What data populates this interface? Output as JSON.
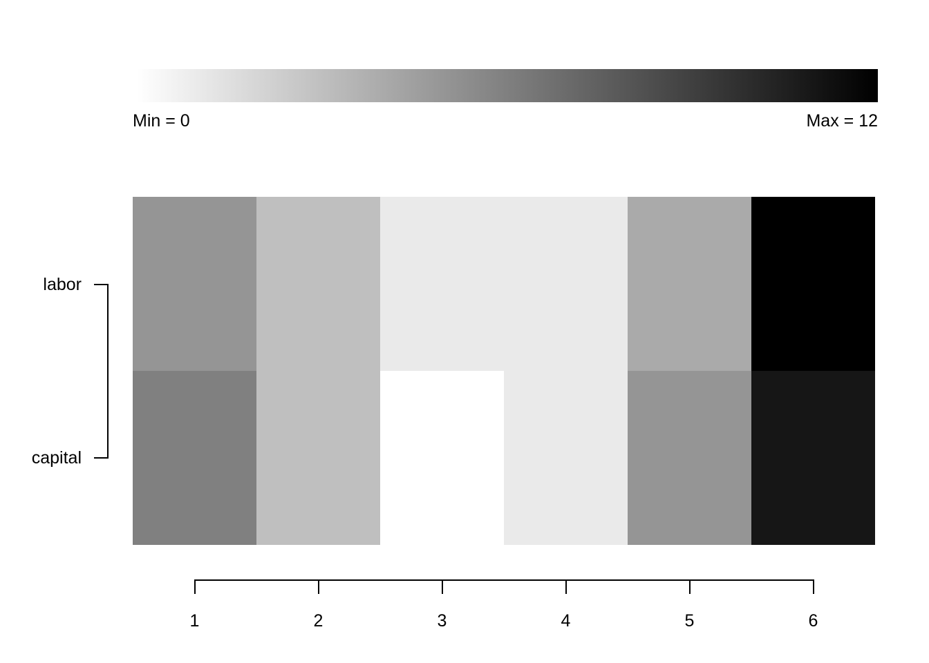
{
  "figure": {
    "background_color": "#ffffff",
    "text_color": "#000000"
  },
  "legend": {
    "min_label": "Min = 0",
    "max_label": "Max = 12",
    "gradient_start_color": "#ffffff",
    "gradient_end_color": "#000000"
  },
  "chart_data": {
    "type": "heatmap",
    "title": "",
    "rows": [
      "labor",
      "capital"
    ],
    "columns": [
      "1",
      "2",
      "3",
      "4",
      "5",
      "6"
    ],
    "series": [
      {
        "name": "labor",
        "values": [
          5,
          3,
          1,
          1,
          4,
          12
        ]
      },
      {
        "name": "capital",
        "values": [
          6,
          3,
          0,
          1,
          5,
          11
        ]
      }
    ],
    "cell_colors": [
      [
        "#959595",
        "#bfbfbf",
        "#eaeaea",
        "#eaeaea",
        "#aaaaaa",
        "#000000"
      ],
      [
        "#808080",
        "#bfbfbf",
        "#ffffff",
        "#eaeaea",
        "#959595",
        "#161616"
      ]
    ],
    "color_scale": {
      "min": 0,
      "max": 12,
      "min_color": "#ffffff",
      "max_color": "#000000"
    },
    "x_tick_labels": [
      "1",
      "2",
      "3",
      "4",
      "5",
      "6"
    ],
    "y_tick_labels": [
      "labor",
      "capital"
    ],
    "legend_position": "top",
    "grid": false
  }
}
